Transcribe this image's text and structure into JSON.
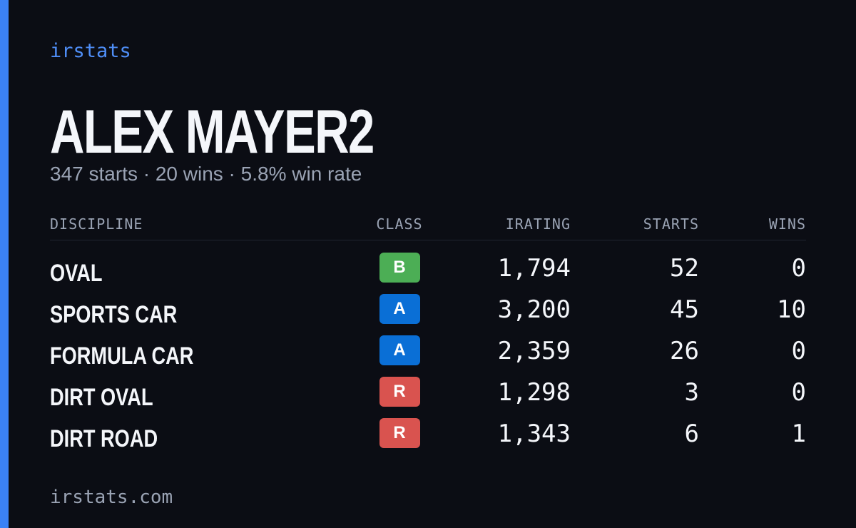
{
  "brand": "irstats",
  "driver": {
    "name": "ALEX MAYER2",
    "summary": "347 starts · 20 wins · 5.8% win rate"
  },
  "table": {
    "headers": [
      "DISCIPLINE",
      "CLASS",
      "IRATING",
      "STARTS",
      "WINS"
    ],
    "rows": [
      {
        "discipline": "OVAL",
        "class": "B",
        "class_color": "#4cae55",
        "irating": "1,794",
        "starts": 52,
        "wins": 0
      },
      {
        "discipline": "SPORTS CAR",
        "class": "A",
        "class_color": "#0a6fd6",
        "irating": "3,200",
        "starts": 45,
        "wins": 10
      },
      {
        "discipline": "FORMULA CAR",
        "class": "A",
        "class_color": "#0a6fd6",
        "irating": "2,359",
        "starts": 26,
        "wins": 0
      },
      {
        "discipline": "DIRT OVAL",
        "class": "R",
        "class_color": "#d9534f",
        "irating": "1,298",
        "starts": 3,
        "wins": 0
      },
      {
        "discipline": "DIRT ROAD",
        "class": "R",
        "class_color": "#d9534f",
        "irating": "1,343",
        "starts": 6,
        "wins": 1
      }
    ]
  },
  "footer": "irstats.com"
}
